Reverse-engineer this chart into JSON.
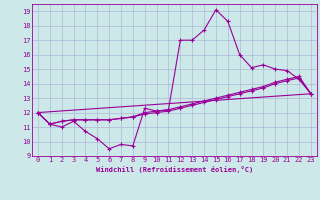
{
  "xlabel": "Windchill (Refroidissement éolien,°C)",
  "xlim": [
    -0.5,
    23.5
  ],
  "ylim": [
    9,
    19.5
  ],
  "xticks": [
    0,
    1,
    2,
    3,
    4,
    5,
    6,
    7,
    8,
    9,
    10,
    11,
    12,
    13,
    14,
    15,
    16,
    17,
    18,
    19,
    20,
    21,
    22,
    23
  ],
  "yticks": [
    9,
    10,
    11,
    12,
    13,
    14,
    15,
    16,
    17,
    18,
    19
  ],
  "bg_color": "#cce8e8",
  "grid_color": "#b0b8d8",
  "line_color": "#990099",
  "line1_x": [
    0,
    1,
    2,
    3,
    4,
    5,
    6,
    7,
    8,
    9,
    10,
    11,
    12,
    13,
    14,
    15,
    16,
    17,
    18,
    19,
    20,
    21,
    22,
    23
  ],
  "line1_y": [
    12,
    11.2,
    11.0,
    11.4,
    10.7,
    10.2,
    9.5,
    9.8,
    9.7,
    12.3,
    12.1,
    12.2,
    17.0,
    17.0,
    17.7,
    19.1,
    18.3,
    16.0,
    15.1,
    15.3,
    15.0,
    14.9,
    14.3,
    13.3
  ],
  "line2_x": [
    0,
    1,
    2,
    3,
    4,
    5,
    6,
    7,
    8,
    9,
    10,
    11,
    12,
    13,
    14,
    15,
    16,
    17,
    18,
    19,
    20,
    21,
    22,
    23
  ],
  "line2_y": [
    12,
    11.2,
    11.4,
    11.5,
    11.5,
    11.5,
    11.5,
    11.6,
    11.7,
    12.0,
    12.1,
    12.2,
    12.4,
    12.6,
    12.8,
    13.0,
    13.2,
    13.4,
    13.6,
    13.8,
    14.1,
    14.3,
    14.5,
    13.3
  ],
  "line3_x": [
    0,
    1,
    2,
    3,
    4,
    5,
    6,
    7,
    8,
    9,
    10,
    11,
    12,
    13,
    14,
    15,
    16,
    17,
    18,
    19,
    20,
    21,
    22,
    23
  ],
  "line3_y": [
    12,
    11.2,
    11.4,
    11.5,
    11.5,
    11.5,
    11.5,
    11.6,
    11.7,
    11.9,
    12.0,
    12.1,
    12.3,
    12.5,
    12.7,
    12.9,
    13.1,
    13.3,
    13.5,
    13.7,
    14.0,
    14.2,
    14.4,
    13.3
  ],
  "line4_x": [
    0,
    23
  ],
  "line4_y": [
    12,
    13.3
  ]
}
